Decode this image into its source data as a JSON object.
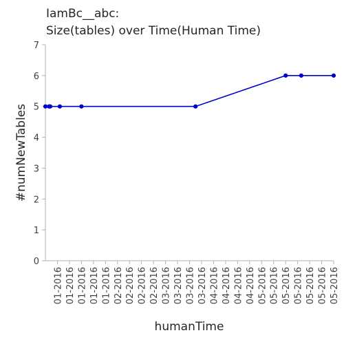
{
  "chart_data": {
    "type": "line",
    "title_lines": [
      "IamBc__abc:",
      "Size(tables) over Time(Human Time)"
    ],
    "xlabel": "humanTime",
    "ylabel": "#numNewTables",
    "ylim": [
      0,
      7
    ],
    "yticks": [
      0,
      1,
      2,
      3,
      4,
      5,
      6,
      7
    ],
    "xlim": [
      0,
      24
    ],
    "xtick_positions": [
      1,
      2,
      3,
      4,
      5,
      6,
      7,
      8,
      9,
      10,
      11,
      12,
      13,
      14,
      15,
      16,
      17,
      18,
      19,
      20,
      21,
      22,
      23,
      24
    ],
    "xtick_labels": [
      "01-2016",
      "01-2016",
      "01-2016",
      "01-2016",
      "01-2016",
      "02-2016",
      "02-2016",
      "02-2016",
      "02-2016",
      "03-2016",
      "03-2016",
      "03-2016",
      "03-2016",
      "04-2016",
      "04-2016",
      "04-2016",
      "04-2016",
      "05-2016",
      "05-2016",
      "05-2016",
      "05-2016",
      "05-2016",
      "05-2016",
      "05-2016"
    ],
    "series": [
      {
        "color": "#0000cc",
        "x": [
          0,
          0.3,
          0.4,
          1.2,
          3.0,
          12.5,
          20.0,
          21.3,
          24.0
        ],
        "y": [
          5,
          5,
          5,
          5,
          5,
          5,
          6,
          6,
          6
        ]
      }
    ],
    "grid": false
  }
}
